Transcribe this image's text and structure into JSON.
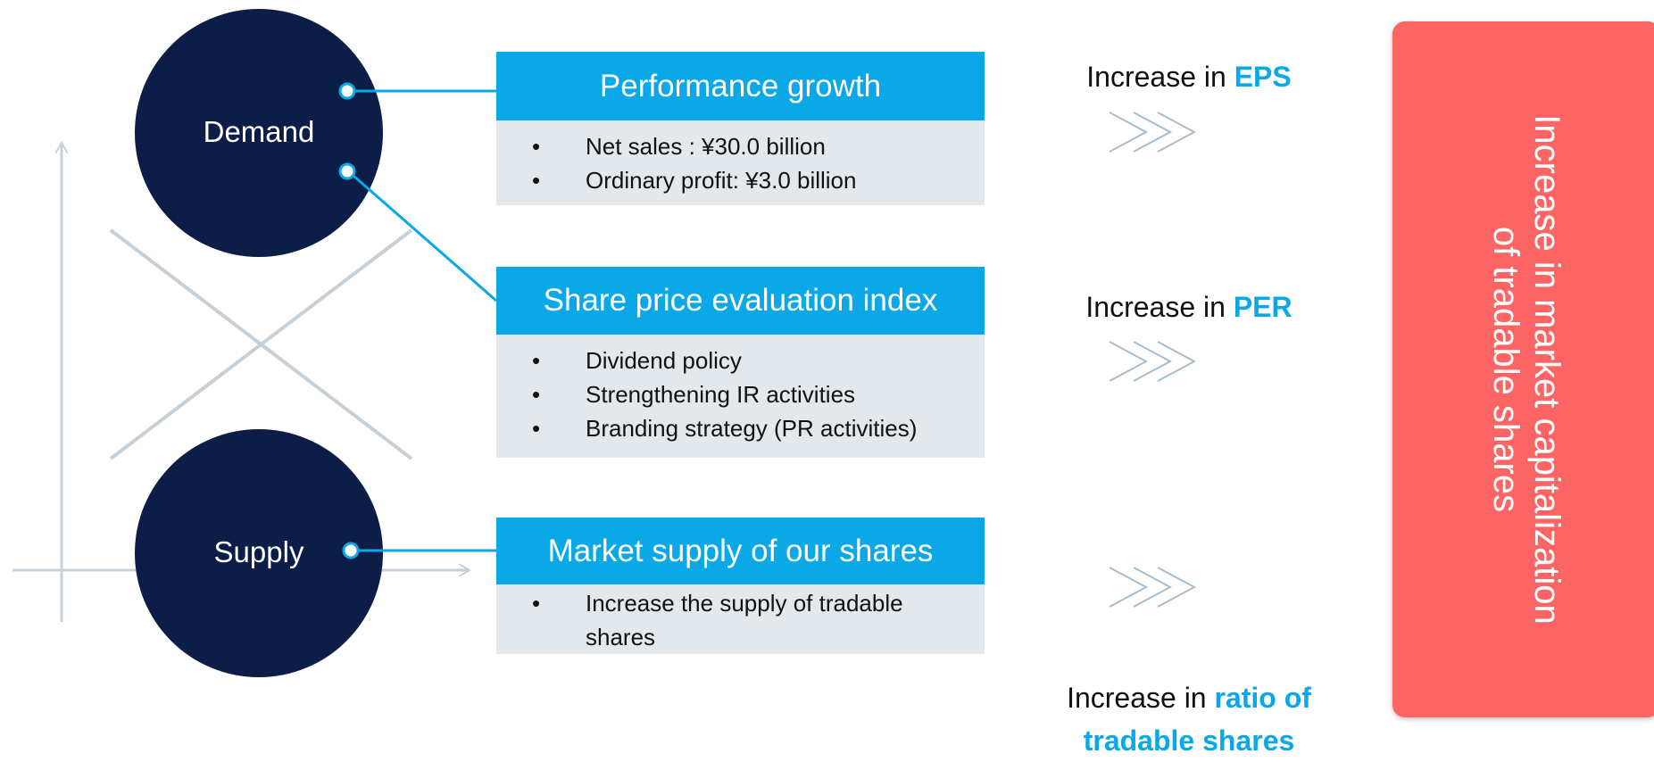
{
  "nodes": [
    {
      "label": "Demand"
    },
    {
      "label": "Supply"
    }
  ],
  "boxes": [
    {
      "header": "Performance growth",
      "bullets": [
        "Net sales : ¥30.0 billion",
        "Ordinary profit: ¥3.0 billion"
      ]
    },
    {
      "header": "Share price evaluation index",
      "bullets": [
        "Dividend policy",
        "Strengthening IR activities",
        "Branding strategy (PR activities)"
      ]
    },
    {
      "header": "Market supply of our shares",
      "bullets": [
        "Increase the supply of tradable shares"
      ]
    }
  ],
  "results": [
    {
      "prefix": "Increase in",
      "highlight": "EPS"
    },
    {
      "prefix": "Increase in",
      "highlight": "PER"
    },
    {
      "prefix": "Increase in",
      "highlight": "ratio of tradable shares"
    }
  ],
  "outcome": {
    "lines": [
      "Increase in market capitalization",
      "of tradable shares"
    ]
  }
}
